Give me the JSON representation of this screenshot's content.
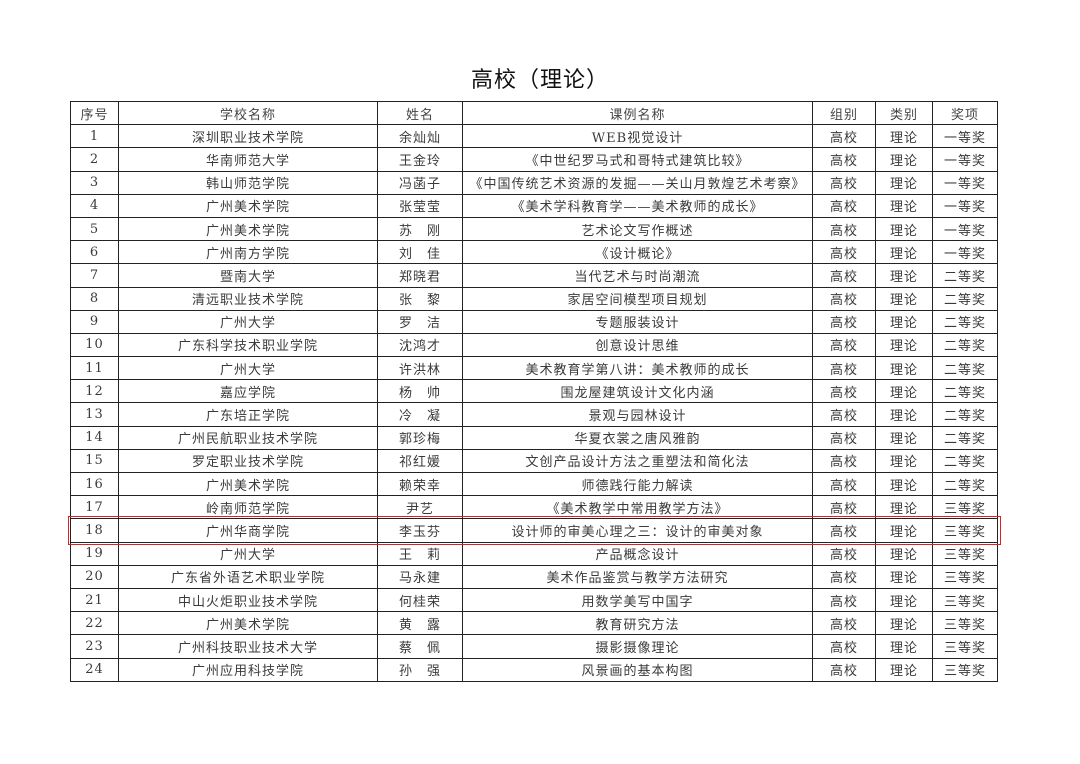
{
  "title": "高校（理论）",
  "highlight_color": "#e02020",
  "highlighted_row": 18,
  "headers": [
    "序号",
    "学校名称",
    "姓名",
    "课例名称",
    "组别",
    "类别",
    "奖项"
  ],
  "rows": [
    [
      "1",
      "深圳职业技术学院",
      "余灿灿",
      "WEB视觉设计",
      "高校",
      "理论",
      "一等奖"
    ],
    [
      "2",
      "华南师范大学",
      "王金玲",
      "《中世纪罗马式和哥特式建筑比较》",
      "高校",
      "理论",
      "一等奖"
    ],
    [
      "3",
      "韩山师范学院",
      "冯菡子",
      "《中国传统艺术资源的发掘——关山月敦煌艺术考察》",
      "高校",
      "理论",
      "一等奖"
    ],
    [
      "4",
      "广州美术学院",
      "张莹莹",
      "《美术学科教育学——美术教师的成长》",
      "高校",
      "理论",
      "一等奖"
    ],
    [
      "5",
      "广州美术学院",
      "苏　刚",
      "艺术论文写作概述",
      "高校",
      "理论",
      "一等奖"
    ],
    [
      "6",
      "广州南方学院",
      "刘　佳",
      "《设计概论》",
      "高校",
      "理论",
      "一等奖"
    ],
    [
      "7",
      "暨南大学",
      "郑晓君",
      "当代艺术与时尚潮流",
      "高校",
      "理论",
      "二等奖"
    ],
    [
      "8",
      "清远职业技术学院",
      "张　黎",
      "家居空间模型项目规划",
      "高校",
      "理论",
      "二等奖"
    ],
    [
      "9",
      "广州大学",
      "罗　洁",
      "专题服装设计",
      "高校",
      "理论",
      "二等奖"
    ],
    [
      "10",
      "广东科学技术职业学院",
      "沈鸿才",
      "创意设计思维",
      "高校",
      "理论",
      "二等奖"
    ],
    [
      "11",
      "广州大学",
      "许洪林",
      "美术教育学第八讲：美术教师的成长",
      "高校",
      "理论",
      "二等奖"
    ],
    [
      "12",
      "嘉应学院",
      "杨　帅",
      "围龙屋建筑设计文化内涵",
      "高校",
      "理论",
      "二等奖"
    ],
    [
      "13",
      "广东培正学院",
      "冷　凝",
      "景观与园林设计",
      "高校",
      "理论",
      "二等奖"
    ],
    [
      "14",
      "广州民航职业技术学院",
      "郭珍梅",
      "华夏衣裳之唐风雅韵",
      "高校",
      "理论",
      "二等奖"
    ],
    [
      "15",
      "罗定职业技术学院",
      "祁红媛",
      "文创产品设计方法之重塑法和简化法",
      "高校",
      "理论",
      "二等奖"
    ],
    [
      "16",
      "广州美术学院",
      "赖荣幸",
      "师德践行能力解读",
      "高校",
      "理论",
      "二等奖"
    ],
    [
      "17",
      "岭南师范学院",
      "尹艺",
      "《美术教学中常用教学方法》",
      "高校",
      "理论",
      "三等奖"
    ],
    [
      "18",
      "广州华商学院",
      "李玉芬",
      "设计师的审美心理之三：设计的审美对象",
      "高校",
      "理论",
      "三等奖"
    ],
    [
      "19",
      "广州大学",
      "王　莉",
      "产品概念设计",
      "高校",
      "理论",
      "三等奖"
    ],
    [
      "20",
      "广东省外语艺术职业学院",
      "马永建",
      "美术作品鉴赏与教学方法研究",
      "高校",
      "理论",
      "三等奖"
    ],
    [
      "21",
      "中山火炬职业技术学院",
      "何桂荣",
      "用数学美写中国字",
      "高校",
      "理论",
      "三等奖"
    ],
    [
      "22",
      "广州美术学院",
      "黄　露",
      "教育研究方法",
      "高校",
      "理论",
      "三等奖"
    ],
    [
      "23",
      "广州科技职业技术大学",
      "蔡　佩",
      "摄影摄像理论",
      "高校",
      "理论",
      "三等奖"
    ],
    [
      "24",
      "广州应用科技学院",
      "孙　强",
      "风景画的基本构图",
      "高校",
      "理论",
      "三等奖"
    ]
  ]
}
